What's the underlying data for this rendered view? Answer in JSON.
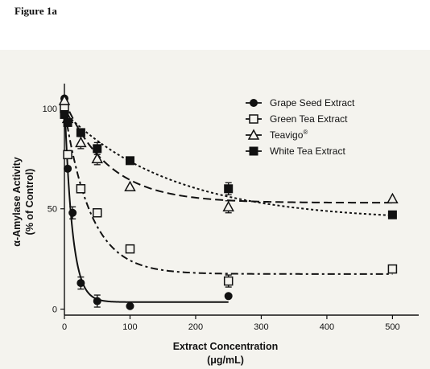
{
  "figure_label": "Figure 1a",
  "chart_data": {
    "type": "scatter",
    "x_label": "Extract Concentration",
    "x_unit": "(μg/mL)",
    "y_label_line1": "α-Amylase Activity",
    "y_label_line2": "(% of Control)",
    "xlim": [
      0,
      540
    ],
    "ylim": [
      -3,
      110
    ],
    "x_ticks": [
      0,
      100,
      200,
      300,
      400,
      500
    ],
    "y_ticks": [
      0,
      50,
      100
    ],
    "x_tick_labels": [
      "0",
      "100",
      "200",
      "300",
      "400",
      "500"
    ],
    "y_tick_labels": [
      "0",
      "50",
      "100"
    ],
    "legend_position": "top-right",
    "series": [
      {
        "name": "Grape Seed Extract",
        "marker": "filled-circle",
        "line_style": "solid",
        "x": [
          0,
          5,
          12.5,
          25,
          50,
          100,
          250
        ],
        "y": [
          105,
          70,
          48,
          13,
          4,
          1.5,
          6.5
        ],
        "error": [
          0,
          0,
          3,
          3,
          3,
          0,
          0
        ],
        "fit_y0": 105,
        "fit_k": 0.085,
        "fit_plateau": 3.5,
        "fit_x_max": 250
      },
      {
        "name": "Green Tea Extract",
        "marker": "open-square",
        "line_style": "dashdot",
        "x": [
          0,
          5,
          25,
          50,
          100,
          250,
          500
        ],
        "y": [
          100,
          77,
          60,
          48,
          30,
          14,
          20
        ],
        "error": [
          0,
          0,
          0,
          0,
          0,
          3,
          0
        ],
        "fit_y0": 100,
        "fit_k": 0.025,
        "fit_plateau": 17.5,
        "fit_x_max": 500
      },
      {
        "name": "Teavigo",
        "name_superscript": "®",
        "marker": "open-triangle",
        "line_style": "dashed",
        "x": [
          0,
          5,
          25,
          50,
          100,
          250,
          500
        ],
        "y": [
          104,
          95,
          83,
          75,
          61,
          51,
          55
        ],
        "error": [
          0,
          0,
          3,
          3,
          0,
          3,
          0
        ],
        "fit_y0": 104,
        "fit_k": 0.015,
        "fit_plateau": 53,
        "fit_x_max": 500
      },
      {
        "name": "White Tea Extract",
        "marker": "filled-square",
        "line_style": "dotted",
        "x": [
          0,
          5,
          25,
          50,
          100,
          250,
          500
        ],
        "y": [
          97,
          93,
          88,
          80,
          74,
          60,
          47
        ],
        "error": [
          0,
          0,
          0,
          3,
          0,
          3,
          0
        ],
        "fit_y0": 98,
        "fit_k": 0.006,
        "fit_plateau": 44,
        "fit_x_max": 500
      }
    ]
  }
}
